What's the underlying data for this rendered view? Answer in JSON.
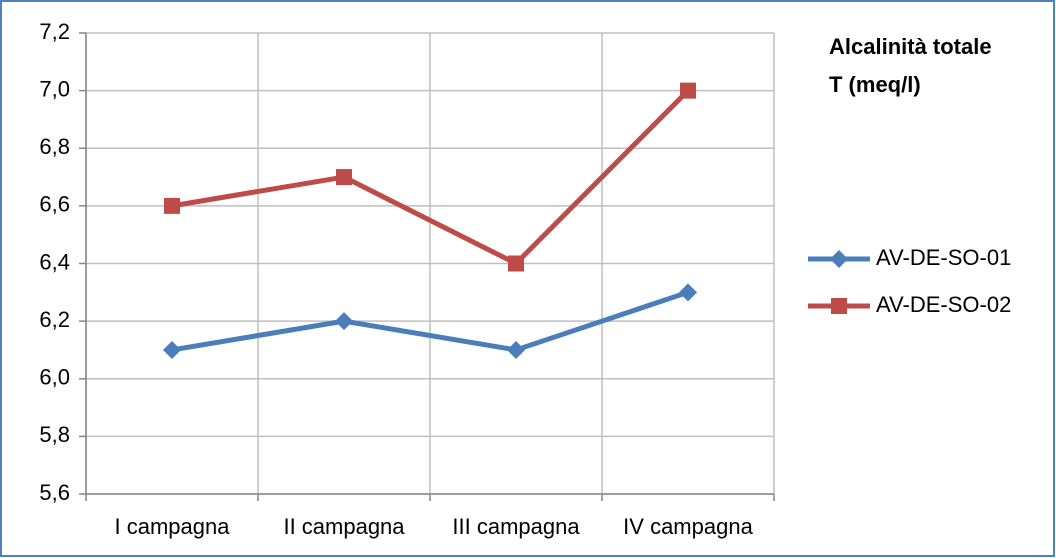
{
  "chart_data": {
    "type": "line",
    "title": [
      "Alcalinità totale",
      "T (meq/l)"
    ],
    "categories": [
      "I campagna",
      "II campagna",
      "III campagna",
      "IV campagna"
    ],
    "series": [
      {
        "name": "AV-DE-SO-01",
        "color": "#4a7ebb",
        "marker": "diamond",
        "values": [
          6.1,
          6.2,
          6.1,
          6.3
        ]
      },
      {
        "name": "AV-DE-SO-02",
        "color": "#be4b48",
        "marker": "square",
        "values": [
          6.6,
          6.7,
          6.4,
          7.0
        ]
      }
    ],
    "ylim": [
      5.6,
      7.2
    ],
    "yticks": [
      {
        "value": 5.6,
        "label": "5,6"
      },
      {
        "value": 5.8,
        "label": "5,8"
      },
      {
        "value": 6.0,
        "label": "6,0"
      },
      {
        "value": 6.2,
        "label": "6,2"
      },
      {
        "value": 6.4,
        "label": "6,4"
      },
      {
        "value": 6.6,
        "label": "6,6"
      },
      {
        "value": 6.8,
        "label": "6,8"
      },
      {
        "value": 7.0,
        "label": "7,0"
      },
      {
        "value": 7.2,
        "label": "7,2"
      }
    ],
    "grid": true,
    "legend": "right"
  }
}
